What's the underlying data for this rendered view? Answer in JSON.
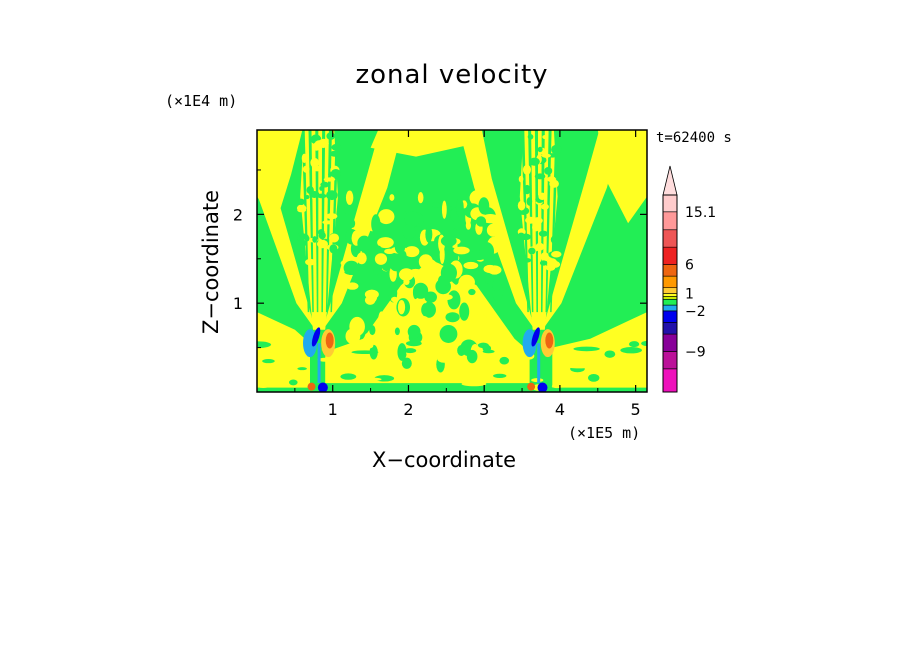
{
  "chart_data": {
    "type": "heatmap",
    "title": "zonal velocity",
    "xlabel": "X−coordinate",
    "ylabel": "Z−coordinate",
    "x_unit": "(×1E5 m)",
    "z_unit": "(×1E4 m)",
    "timestamp": "t=62400 s",
    "xlim": [
      0,
      5.15
    ],
    "ylim": [
      0,
      2.95
    ],
    "x_ticks": [
      1,
      2,
      3,
      4,
      5
    ],
    "y_ticks": [
      1,
      2
    ],
    "colorbar": {
      "labels": [
        {
          "text": "15.1",
          "value": 15.1
        },
        {
          "text": "6",
          "value": 6
        },
        {
          "text": "1",
          "value": 1
        },
        {
          "text": "−2",
          "value": -2
        },
        {
          "text": "−9",
          "value": -9
        }
      ],
      "bands": [
        {
          "lo": -16,
          "hi": -12,
          "color": "#ee11bb"
        },
        {
          "lo": -12,
          "hi": -9,
          "color": "#bb1199"
        },
        {
          "lo": -9,
          "hi": -6,
          "color": "#880099"
        },
        {
          "lo": -6,
          "hi": -4,
          "color": "#2211aa"
        },
        {
          "lo": -4,
          "hi": -2,
          "color": "#0000ee"
        },
        {
          "lo": -2,
          "hi": -1,
          "color": "#22aaee"
        },
        {
          "lo": -1,
          "hi": 0,
          "color": "#22ee55"
        },
        {
          "lo": 0,
          "hi": 0.5,
          "color": "#ccee00"
        },
        {
          "lo": 0.5,
          "hi": 1,
          "color": "#ffff22"
        },
        {
          "lo": 1,
          "hi": 2,
          "color": "#ffcc33"
        },
        {
          "lo": 2,
          "hi": 4,
          "color": "#ff9900"
        },
        {
          "lo": 4,
          "hi": 6,
          "color": "#ee6611"
        },
        {
          "lo": 6,
          "hi": 9,
          "color": "#ee2222"
        },
        {
          "lo": 9,
          "hi": 12,
          "color": "#ee5555"
        },
        {
          "lo": 12,
          "hi": 15.1,
          "color": "#ff9999"
        },
        {
          "lo": 15.1,
          "hi": 18,
          "color": "#ffcccc"
        }
      ],
      "overflow_color": "#ffdddd"
    },
    "field_colors": {
      "positive_weak": "#ffff22",
      "negative_weak": "#22ee55",
      "strong_negative": "#0000ee",
      "moderate_negative": "#22aaee",
      "strong_positive": "#ee6611",
      "moderate_positive": "#ffcc33"
    },
    "features": [
      {
        "name": "mountain-wave-1",
        "x_center": 0.82
      },
      {
        "name": "mountain-wave-2",
        "x_center": 3.72
      }
    ]
  }
}
